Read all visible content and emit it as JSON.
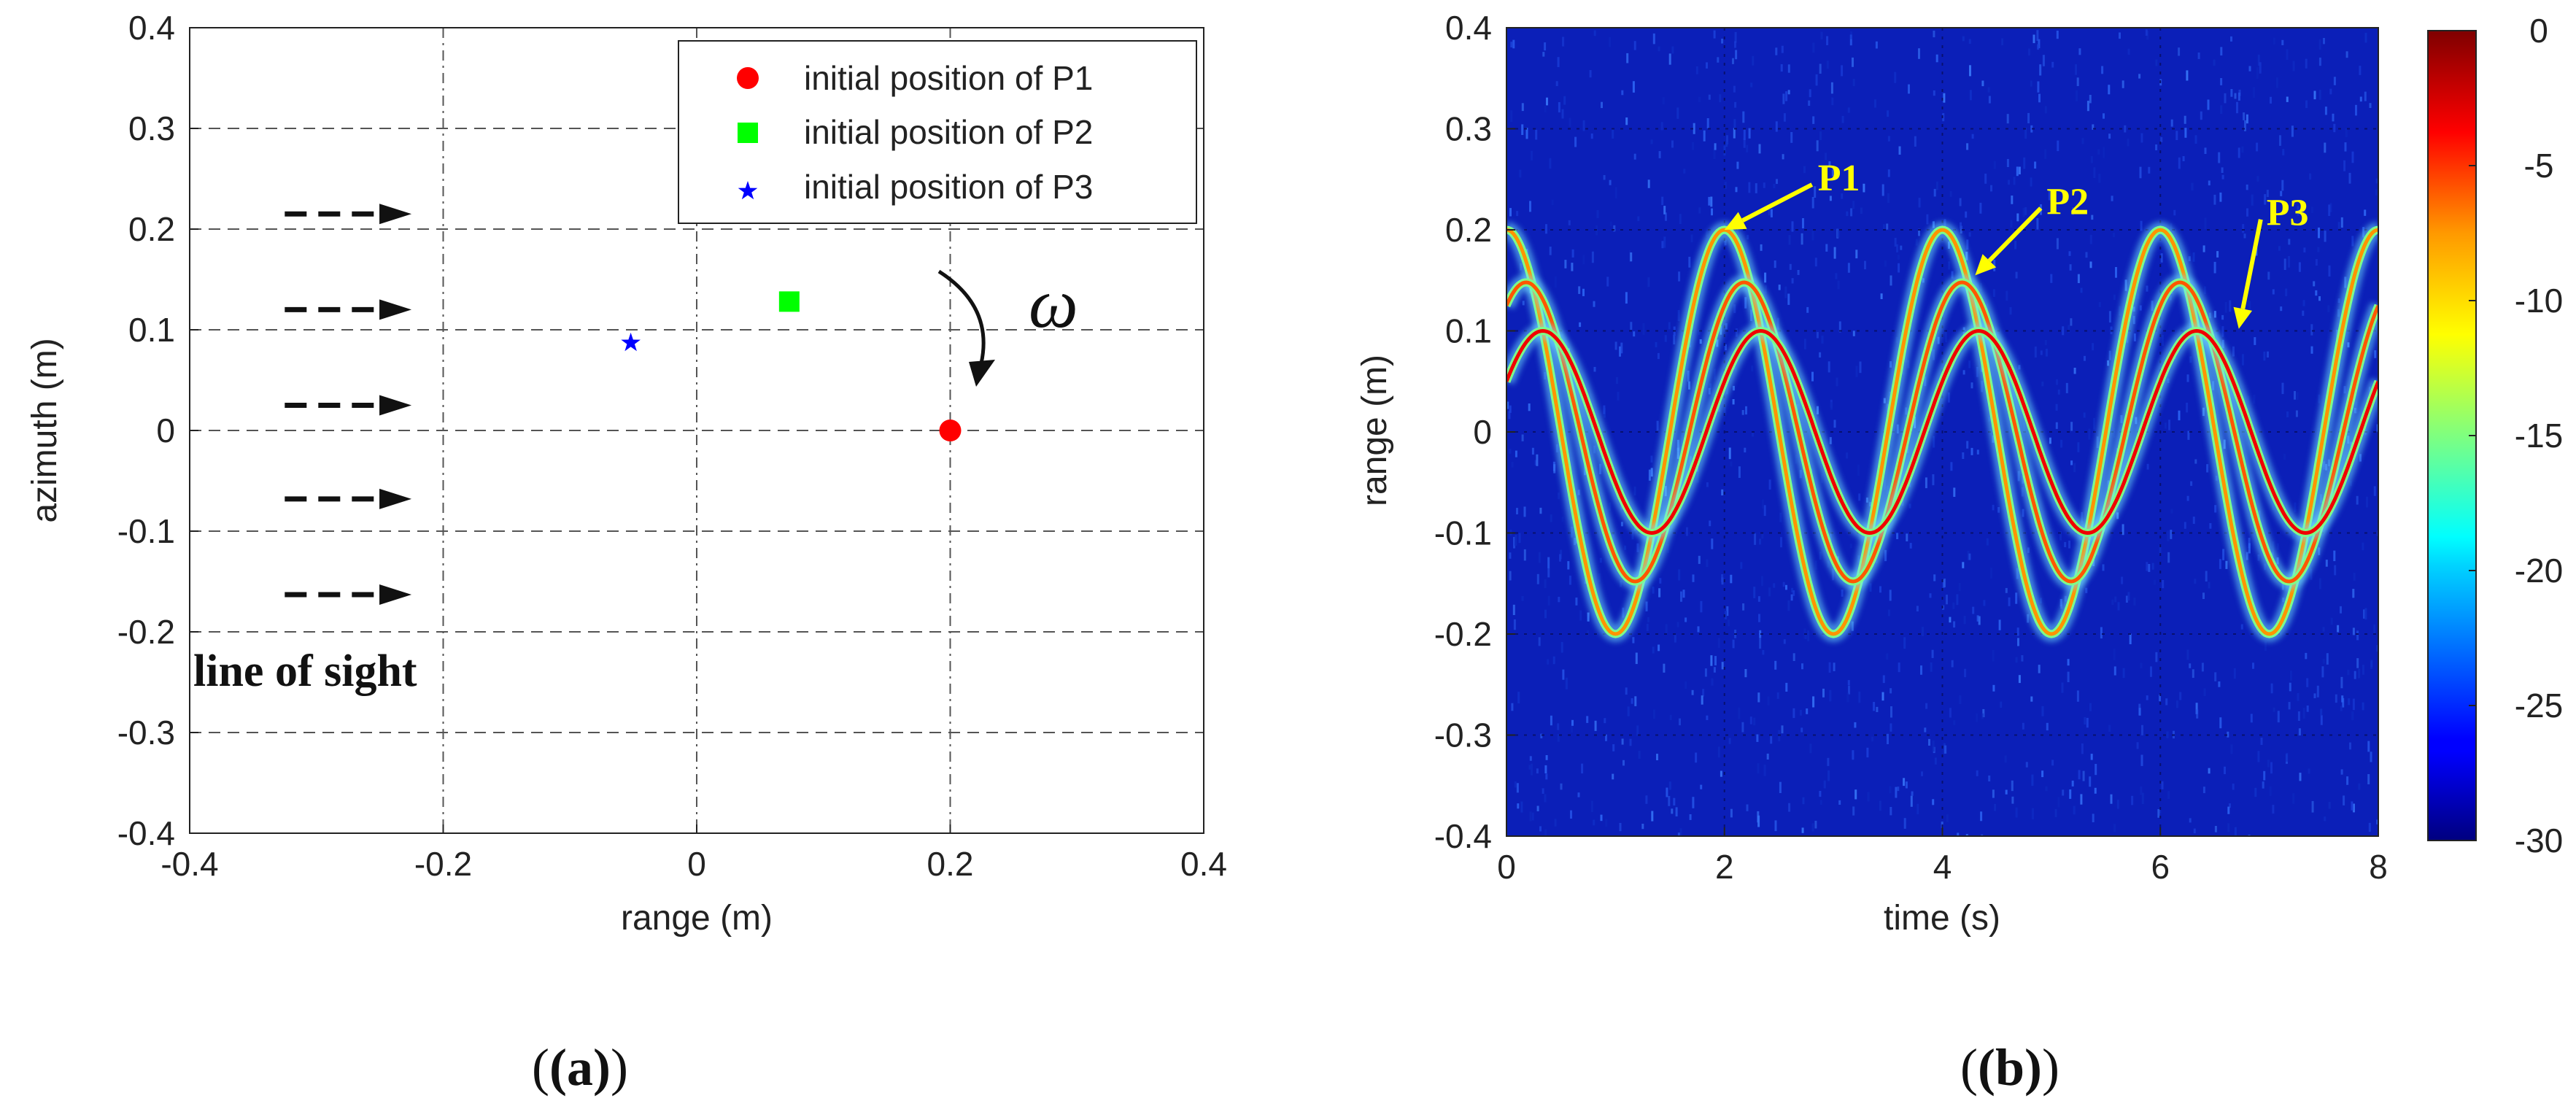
{
  "chart_data": [
    {
      "type": "scatter",
      "panel_label": "(a)",
      "xlabel": "range (m)",
      "ylabel": "azimuth (m)",
      "xlim": [
        -0.4,
        0.4
      ],
      "ylim": [
        -0.4,
        0.4
      ],
      "x_ticks": [
        -0.4,
        -0.2,
        0,
        0.2,
        0.4
      ],
      "x_tick_labels": [
        "-0.4",
        "-0.2",
        "0",
        "0.2",
        "0.4"
      ],
      "y_ticks": [
        0.4,
        0.3,
        0.2,
        0.1,
        0,
        -0.1,
        -0.2,
        -0.3,
        -0.4
      ],
      "y_tick_labels": [
        "0.4",
        "0.3",
        "0.2",
        "0.1",
        "0",
        "-0.1",
        "-0.2",
        "-0.3",
        "-0.4"
      ],
      "grid": true,
      "legend_position": "top-right",
      "series": [
        {
          "name": "initial position of P1",
          "marker": "circle",
          "color": "#ff0000",
          "x": 0.2,
          "y": 0.0
        },
        {
          "name": "initial position of P2",
          "marker": "square",
          "color": "#00ff00",
          "x": 0.073,
          "y": 0.128
        },
        {
          "name": "initial position of P3",
          "marker": "star",
          "color": "#0000ff",
          "x": -0.052,
          "y": 0.087
        }
      ],
      "annotations": {
        "line_of_sight_label": "line of sight",
        "line_of_sight_arrow_y": [
          0.215,
          0.12,
          0.025,
          -0.068,
          -0.163
        ],
        "line_of_sight_arrow_x": [
          -0.325,
          -0.225
        ],
        "rotation_symbol": "ω"
      }
    },
    {
      "type": "heatmap",
      "panel_label": "(b)",
      "xlabel": "time (s)",
      "ylabel": "range (m)",
      "xlim": [
        0,
        8
      ],
      "ylim": [
        -0.4,
        0.4
      ],
      "x_ticks": [
        0,
        2,
        4,
        6,
        8
      ],
      "x_tick_labels": [
        "0",
        "2",
        "4",
        "6",
        "8"
      ],
      "y_ticks": [
        0.4,
        0.3,
        0.2,
        0.1,
        0,
        -0.1,
        -0.2,
        -0.3,
        -0.4
      ],
      "y_tick_labels": [
        "0.4",
        "0.3",
        "0.2",
        "0.1",
        "0",
        "-0.1",
        "-0.2",
        "-0.3",
        "-0.4"
      ],
      "colormap": "jet",
      "colorbar_range": [
        -30,
        0
      ],
      "colorbar_ticks": [
        0,
        -5,
        -10,
        -15,
        -20,
        -25,
        -30
      ],
      "colorbar_tick_labels": [
        "0",
        "-5",
        "-10",
        "-15",
        "-20",
        "-25",
        "-30"
      ],
      "rotation_period_s": 2,
      "background_color": "#0b1fb8",
      "curves": [
        {
          "name": "P1",
          "amplitude": 0.2,
          "phase": 0.0,
          "strength": 0.45
        },
        {
          "name": "P2",
          "amplitude": 0.148,
          "phase": 0.5639,
          "strength": 0.6
        },
        {
          "name": "P3",
          "amplitude": 0.1,
          "phase": 1.0472,
          "strength": 0.85
        }
      ],
      "callouts": [
        {
          "label": "P1",
          "target_t": 2.0,
          "target_r": 0.2
        },
        {
          "label": "P2",
          "target_t": 4.3,
          "target_r": 0.155
        },
        {
          "label": "P3",
          "target_t": 6.72,
          "target_r": 0.102
        }
      ]
    }
  ]
}
